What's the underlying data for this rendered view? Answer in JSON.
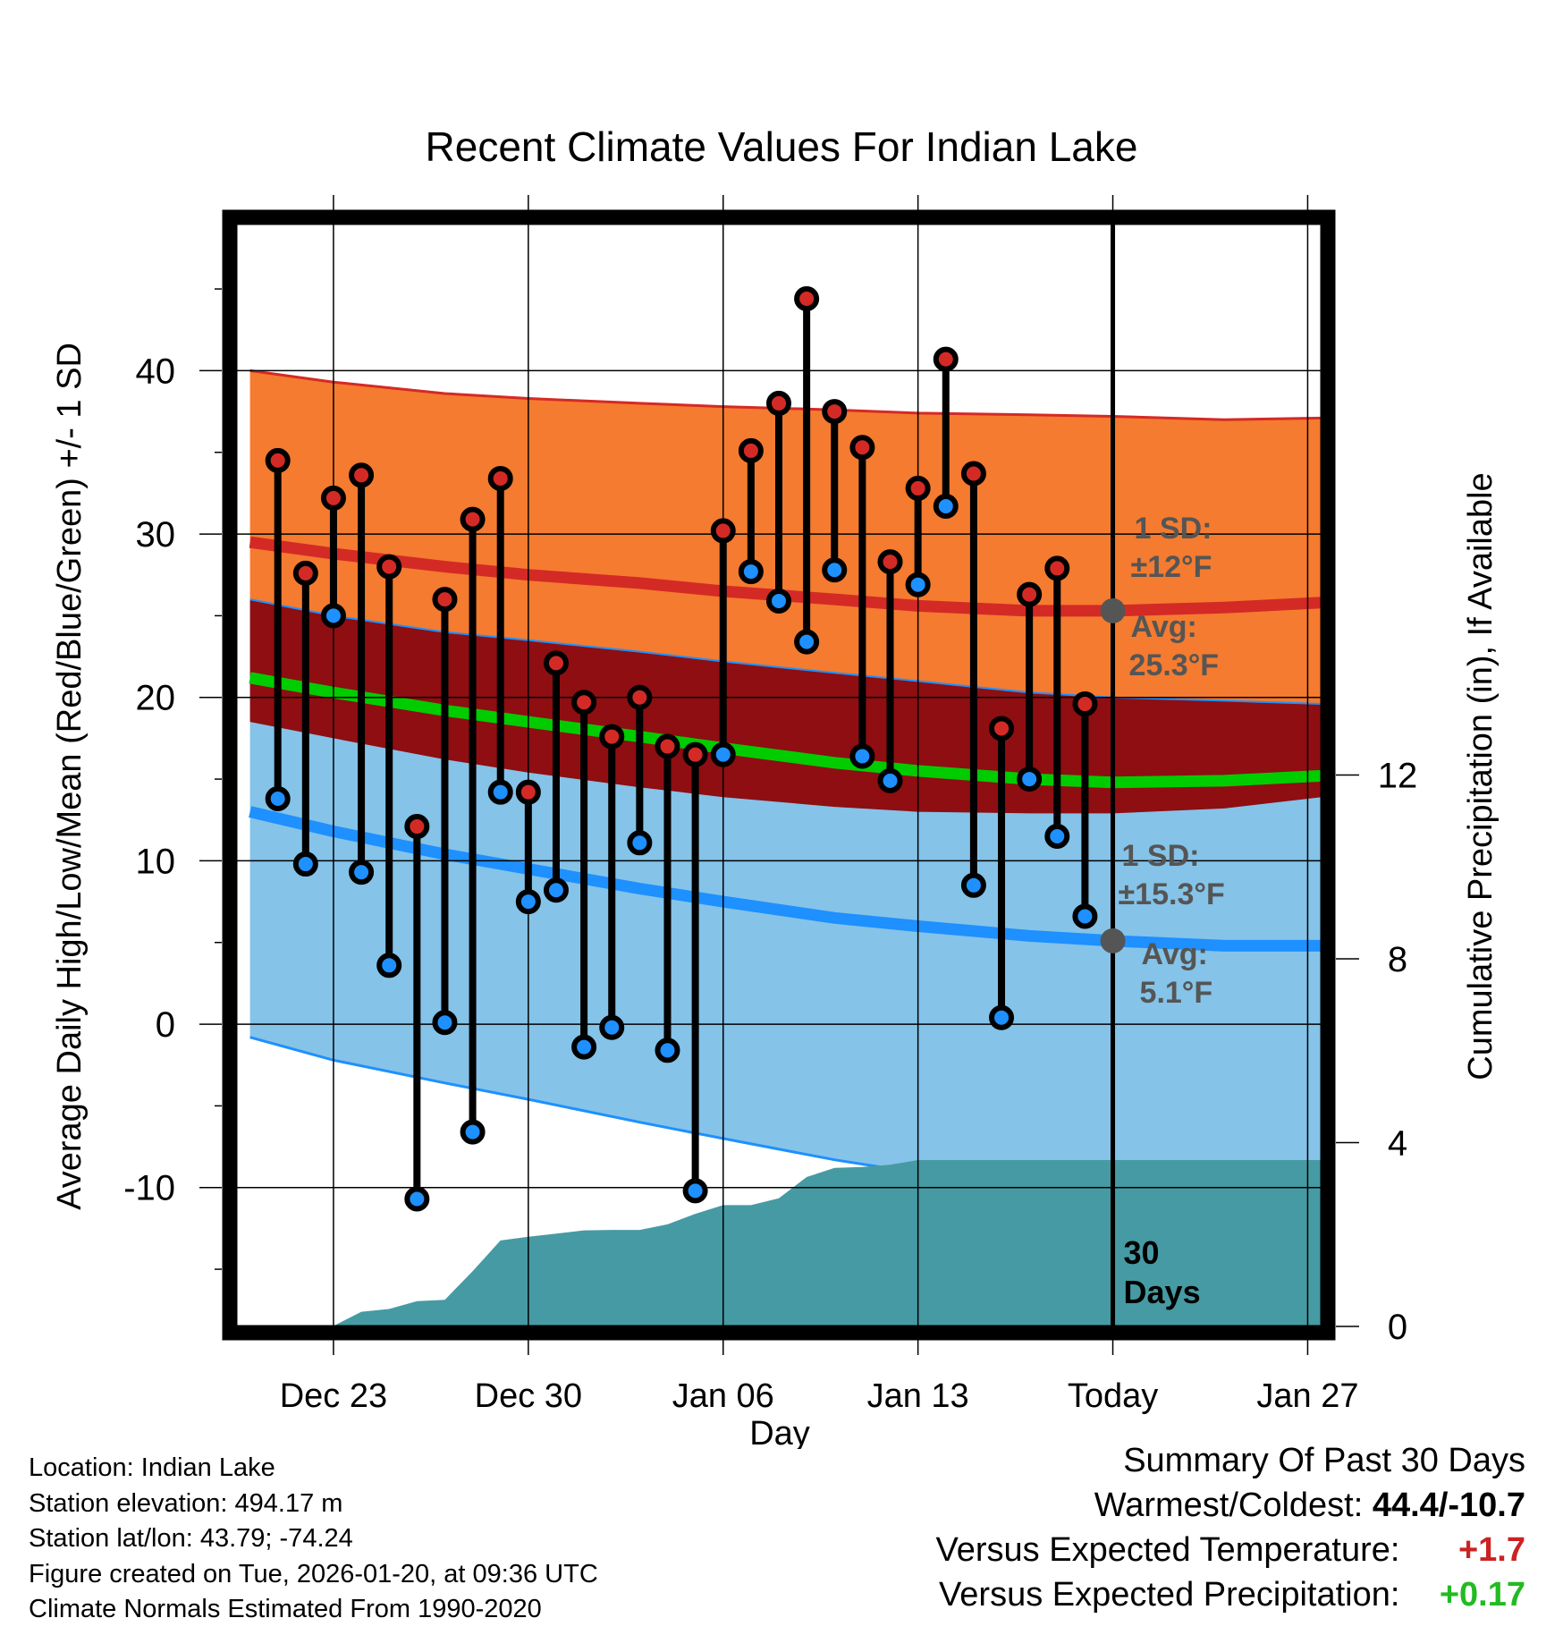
{
  "colors": {
    "high_band": "#f47b2f",
    "high_line": "#d42a26",
    "mean_band": "#8e0e12",
    "mean_line": "#00cc00",
    "low_band": "#85c3e8",
    "low_line": "#1e90ff",
    "precip_fill": "#469aa3",
    "high_marker": "#d42a26",
    "low_marker": "#1e90ff",
    "annotation": "#555555",
    "positive": "#cc2222",
    "positive_precip": "#22bb22"
  },
  "chart_data": {
    "type": "line",
    "title": "Recent Climate Values For Indian Lake",
    "xlabel": "Day",
    "ylabel": "Average Daily High/Low/Mean (Red/Blue/Green) +/- 1 SD",
    "y2label": "Cumulative Precipitation (in), If Available",
    "ylim": [
      -18.5,
      49
    ],
    "y2lim": [
      0,
      24
    ],
    "xlim": [
      -0.5,
      38.5
    ],
    "y_ticks": [
      "40",
      "30",
      "20",
      "10",
      "0",
      "-10"
    ],
    "y_tick_values": [
      40,
      30,
      20,
      10,
      0,
      -10
    ],
    "y2_ticks": [
      "12",
      "8",
      "4",
      "0"
    ],
    "y2_tick_values": [
      12,
      8,
      4,
      0
    ],
    "x_ticks": [
      "Dec 23",
      "Dec 30",
      "Jan 06",
      "Jan 13",
      "Today",
      "Jan 27"
    ],
    "x_tick_days": [
      3,
      10,
      17,
      24,
      31,
      38
    ],
    "today_day": 31,
    "today_label_line1": "30",
    "today_label_line2": "Days",
    "normals": {
      "days": [
        0,
        3,
        7,
        10,
        14,
        17,
        21,
        24,
        28,
        31,
        35,
        38.5
      ],
      "high_mean": [
        29.5,
        28.8,
        28.0,
        27.5,
        27.0,
        26.5,
        26.0,
        25.6,
        25.3,
        25.3,
        25.5,
        25.8
      ],
      "high_plus_sd": [
        40.0,
        39.3,
        38.6,
        38.3,
        38.0,
        37.8,
        37.6,
        37.4,
        37.3,
        37.2,
        37.0,
        37.1
      ],
      "low_mean": [
        13.0,
        11.8,
        10.4,
        9.5,
        8.3,
        7.5,
        6.5,
        6.0,
        5.4,
        5.1,
        4.8,
        4.8
      ],
      "low_plus_sd": [
        26.0,
        25.0,
        24.0,
        23.5,
        22.8,
        22.2,
        21.5,
        21.0,
        20.3,
        20.0,
        19.8,
        19.6
      ],
      "low_minus_sd": [
        -0.8,
        -2.2,
        -3.6,
        -4.6,
        -6.0,
        -7.0,
        -8.3,
        -9.1,
        -9.8,
        -10.2,
        -10.5,
        -10.7
      ],
      "mean": [
        21.2,
        20.3,
        19.2,
        18.5,
        17.6,
        16.9,
        16.0,
        15.5,
        15.0,
        14.8,
        14.9,
        15.2
      ],
      "mean_band_low": [
        18.5,
        17.5,
        16.2,
        15.4,
        14.5,
        13.9,
        13.3,
        13.0,
        12.9,
        12.9,
        13.2,
        13.9
      ]
    },
    "series": [
      {
        "name": "Daily High",
        "days": [
          1,
          2,
          3,
          4,
          5,
          6,
          7,
          8,
          9,
          10,
          11,
          12,
          13,
          14,
          15,
          16,
          17,
          18,
          19,
          20,
          21,
          22,
          23,
          24,
          25,
          26,
          27,
          28,
          29,
          30
        ],
        "values": [
          34.5,
          27.6,
          32.2,
          33.6,
          28.0,
          12.1,
          26.0,
          30.9,
          33.4,
          14.2,
          22.1,
          19.7,
          17.6,
          20.0,
          17.0,
          16.5,
          30.2,
          35.1,
          38.0,
          44.4,
          37.5,
          35.3,
          28.3,
          32.8,
          40.7,
          33.7,
          18.1,
          26.3,
          27.9,
          19.6
        ]
      },
      {
        "name": "Daily Low",
        "days": [
          1,
          2,
          3,
          4,
          5,
          6,
          7,
          8,
          9,
          10,
          11,
          12,
          13,
          14,
          15,
          16,
          17,
          18,
          19,
          20,
          21,
          22,
          23,
          24,
          25,
          26,
          27,
          28,
          29,
          30
        ],
        "values": [
          13.8,
          9.8,
          25.0,
          9.3,
          3.6,
          -10.7,
          0.1,
          -6.6,
          14.2,
          7.5,
          8.2,
          -1.4,
          -0.2,
          11.1,
          -1.6,
          -10.2,
          16.5,
          27.7,
          25.9,
          23.4,
          27.8,
          16.4,
          14.9,
          26.9,
          31.7,
          8.5,
          0.4,
          15.0,
          11.5,
          6.6
        ]
      },
      {
        "name": "Cumulative Precipitation",
        "days": [
          -0.5,
          0,
          1,
          2,
          3,
          4,
          5,
          6,
          7,
          8,
          9,
          10,
          11,
          12,
          13,
          14,
          15,
          16,
          17,
          18,
          19,
          20,
          21,
          22,
          23,
          24,
          25,
          26,
          27,
          28,
          29,
          30,
          31,
          38.5
        ],
        "values": [
          0,
          0,
          0,
          0,
          0.01,
          0.32,
          0.38,
          0.55,
          0.58,
          1.2,
          1.87,
          1.95,
          2.02,
          2.09,
          2.1,
          2.1,
          2.22,
          2.45,
          2.64,
          2.64,
          2.79,
          3.25,
          3.45,
          3.47,
          3.52,
          3.62,
          3.62,
          3.62,
          3.62,
          3.62,
          3.62,
          3.62,
          3.62,
          3.62
        ]
      }
    ],
    "annotations": {
      "high_sd_line1": "1 SD:",
      "high_sd_line2": "±12°F",
      "high_avg_line1": "Avg:",
      "high_avg_line2": "25.3°F",
      "high_avg_value": 25.3,
      "low_sd_line1": "1 SD:",
      "low_sd_line2": "±15.3°F",
      "low_avg_line1": "Avg:",
      "low_avg_line2": "5.1°F",
      "low_avg_value": 5.1
    }
  },
  "footer": {
    "location": "Location: Indian Lake",
    "elevation": "Station elevation: 494.17 m",
    "latlon": "Station lat/lon: 43.79; -74.24",
    "created": "Figure created on Tue, 2026-01-20, at 09:36 UTC",
    "normals": "Climate Normals Estimated From 1990-2020"
  },
  "summary": {
    "title": "Summary Of Past 30 Days",
    "warmest_coldest_label": "Warmest/Coldest:",
    "warmest_coldest_value": "44.4/-10.7",
    "temp_label": "Versus Expected Temperature:",
    "temp_value": "+1.7",
    "precip_label": "Versus Expected Precipitation:",
    "precip_value": "+0.17"
  }
}
